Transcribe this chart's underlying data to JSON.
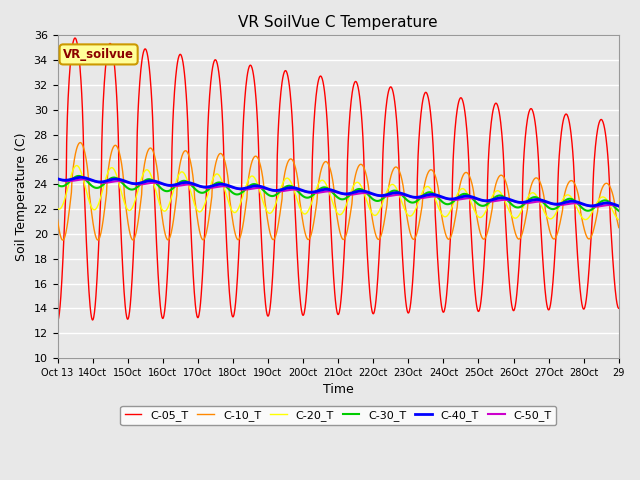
{
  "title": "VR SoilVue C Temperature",
  "xlabel": "Time",
  "ylabel": "Soil Temperature (C)",
  "ylim": [
    10,
    36
  ],
  "yticks": [
    10,
    12,
    14,
    16,
    18,
    20,
    22,
    24,
    26,
    28,
    30,
    32,
    34,
    36
  ],
  "background_color": "#e8e8e8",
  "plot_bg_color": "#e8e8e8",
  "grid_color": "#ffffff",
  "series": [
    {
      "label": "C-05_T",
      "color": "#ff0000"
    },
    {
      "label": "C-10_T",
      "color": "#ff8800"
    },
    {
      "label": "C-20_T",
      "color": "#ffff00"
    },
    {
      "label": "C-30_T",
      "color": "#00cc00"
    },
    {
      "label": "C-40_T",
      "color": "#0000ff"
    },
    {
      "label": "C-50_T",
      "color": "#cc00cc"
    }
  ],
  "legend_text": "VR_soilvue",
  "legend_bg": "#ffff99",
  "legend_border": "#cc9900",
  "tick_labels": [
    "Oct 13",
    "14Oct",
    "15Oct",
    "16Oct",
    "17Oct",
    "18Oct",
    "19Oct",
    "20Oct",
    "21Oct",
    "22Oct",
    "23Oct",
    "24Oct",
    "25Oct",
    "26Oct",
    "27Oct",
    "28Oct",
    "29"
  ]
}
